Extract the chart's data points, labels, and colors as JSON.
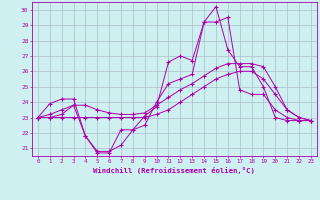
{
  "xlabel": "Windchill (Refroidissement éolien,°C)",
  "bg_color": "#cff0f0",
  "line_color": "#aa00aa",
  "grid_color": "#aabbcc",
  "xlim": [
    -0.5,
    23.5
  ],
  "ylim": [
    20.5,
    30.5
  ],
  "xticks": [
    0,
    1,
    2,
    3,
    4,
    5,
    6,
    7,
    8,
    9,
    10,
    11,
    12,
    13,
    14,
    15,
    16,
    17,
    18,
    19,
    20,
    21,
    22,
    23
  ],
  "yticks": [
    21,
    22,
    23,
    24,
    25,
    26,
    27,
    28,
    29,
    30
  ],
  "series": [
    {
      "x": [
        0,
        1,
        2,
        3,
        4,
        5,
        6,
        7,
        8,
        9,
        10,
        11,
        12,
        13,
        14,
        15,
        16,
        17,
        18,
        19,
        20,
        21,
        22,
        23
      ],
      "y": [
        23.0,
        23.9,
        24.2,
        24.2,
        21.8,
        20.8,
        20.8,
        21.2,
        22.2,
        23.1,
        23.7,
        26.6,
        27.0,
        26.7,
        29.2,
        30.2,
        27.4,
        26.3,
        26.3,
        25.0,
        23.0,
        22.8,
        22.8,
        22.8
      ]
    },
    {
      "x": [
        0,
        1,
        2,
        3,
        4,
        5,
        6,
        7,
        8,
        9,
        10,
        11,
        12,
        13,
        14,
        15,
        16,
        17,
        18,
        19,
        20,
        21,
        22,
        23
      ],
      "y": [
        23.0,
        23.2,
        23.5,
        23.8,
        23.8,
        23.5,
        23.3,
        23.2,
        23.2,
        23.3,
        23.8,
        24.3,
        24.8,
        25.2,
        25.7,
        26.2,
        26.5,
        26.5,
        26.5,
        26.3,
        25.0,
        23.5,
        23.0,
        22.8
      ]
    },
    {
      "x": [
        0,
        1,
        2,
        3,
        4,
        5,
        6,
        7,
        8,
        9,
        10,
        11,
        12,
        13,
        14,
        15,
        16,
        17,
        18,
        19,
        20,
        21,
        22,
        23
      ],
      "y": [
        23.0,
        23.0,
        23.0,
        23.0,
        23.0,
        23.0,
        23.0,
        23.0,
        23.0,
        23.0,
        23.2,
        23.5,
        24.0,
        24.5,
        25.0,
        25.5,
        25.8,
        26.0,
        26.0,
        25.5,
        24.5,
        23.5,
        23.0,
        22.8
      ]
    },
    {
      "x": [
        0,
        1,
        2,
        3,
        4,
        5,
        6,
        7,
        8,
        9,
        10,
        11,
        12,
        13,
        14,
        15,
        16,
        17,
        18,
        19,
        20,
        21,
        22,
        23
      ],
      "y": [
        23.0,
        23.0,
        23.2,
        23.8,
        21.8,
        20.7,
        20.7,
        22.2,
        22.2,
        22.5,
        24.0,
        25.2,
        25.5,
        25.8,
        29.2,
        29.2,
        29.5,
        24.8,
        24.5,
        24.5,
        23.5,
        23.0,
        22.8,
        22.8
      ]
    }
  ]
}
